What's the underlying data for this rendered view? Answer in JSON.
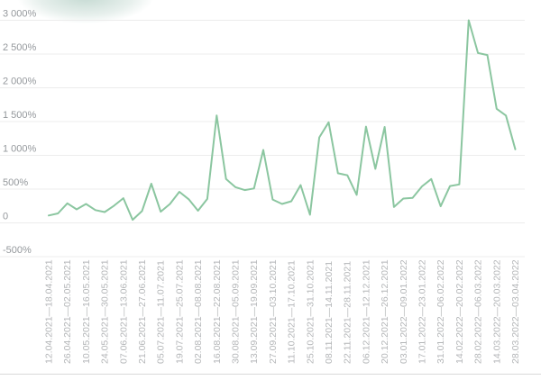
{
  "chart_data": {
    "type": "line",
    "title": "",
    "xlabel": "",
    "ylabel": "",
    "ylim": [
      -500,
      3000
    ],
    "grid": true,
    "legend": "none",
    "line_color": "#8bc6a0",
    "grid_color": "#ececec",
    "bottom_border_color": "#d9d9d9",
    "y_label_color": "#94989c",
    "x_label_color": "#b4b6b8",
    "y_ticks": [
      {
        "value": 3000,
        "label": "3 000%"
      },
      {
        "value": 2500,
        "label": "2 500%"
      },
      {
        "value": 2000,
        "label": "2 000%"
      },
      {
        "value": 1500,
        "label": "1 500%"
      },
      {
        "value": 1000,
        "label": "1 000%"
      },
      {
        "value": 500,
        "label": "500%"
      },
      {
        "value": 0,
        "label": "0"
      },
      {
        "value": -500,
        "label": "-500%"
      }
    ],
    "categories": [
      "12.04.2021—18.04.2021",
      "26.04.2021—02.05.2021",
      "10.05.2021—16.05.2021",
      "24.05.2021—30.05.2021",
      "07.06.2021—13.06.2021",
      "21.06.2021—27.06.2021",
      "05.07.2021—11.07.2021",
      "19.07.2021—25.07.2021",
      "02.08.2021—08.08.2021",
      "16.08.2021—22.08.2021",
      "30.08.2021—05.09.2021",
      "13.09.2021—19.09.2021",
      "27.09.2021—03.10.2021",
      "11.10.2021—17.10.2021",
      "25.10.2021—31.10.2021",
      "08.11.2021—14.11.2021",
      "22.11.2021—28.11.2021",
      "06.12.2021—12.12.2021",
      "20.12.2021—26.12.2021",
      "03.01.2022—09.01.2022",
      "17.01.2022—23.01.2022",
      "31.01.2022—06.02.2022",
      "14.02.2022—20.02.2022",
      "28.02.2022—06.03.2022",
      "14.03.2022—20.03.2022",
      "28.03.2022—03.04.2022"
    ],
    "values": [
      110,
      140,
      290,
      200,
      280,
      190,
      160,
      255,
      365,
      45,
      175,
      580,
      165,
      280,
      460,
      350,
      180,
      355,
      1590,
      650,
      530,
      485,
      510,
      1080,
      345,
      280,
      320,
      560,
      120,
      1265,
      1490,
      735,
      705,
      415,
      1425,
      800,
      1420,
      235,
      360,
      370,
      540,
      650,
      245,
      545,
      570,
      3000,
      2515,
      2485,
      1690,
      1590,
      1090
    ],
    "note_labels_every_n_points": 2
  }
}
